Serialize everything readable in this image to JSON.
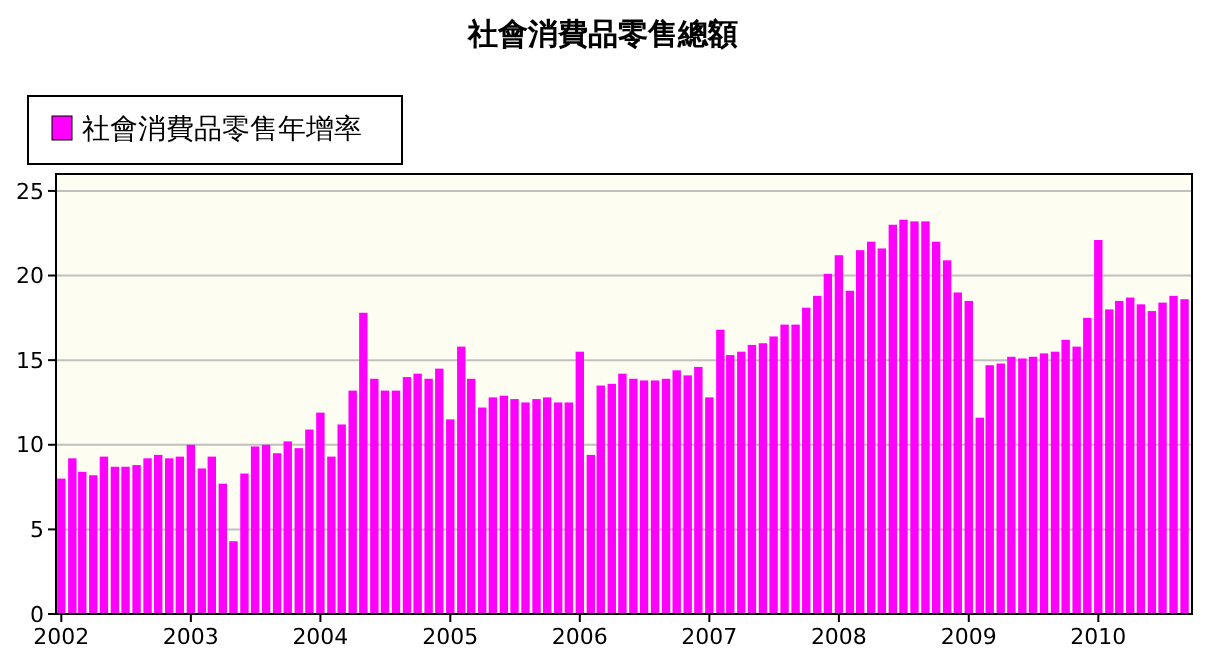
{
  "chart_data": {
    "type": "bar",
    "title": "社會消費品零售總額",
    "x": [
      "2002-01",
      "2002-02",
      "2002-03",
      "2002-04",
      "2002-05",
      "2002-06",
      "2002-07",
      "2002-08",
      "2002-09",
      "2002-10",
      "2002-11",
      "2002-12",
      "2003-01",
      "2003-02",
      "2003-03",
      "2003-04",
      "2003-05",
      "2003-06",
      "2003-07",
      "2003-08",
      "2003-09",
      "2003-10",
      "2003-11",
      "2003-12",
      "2004-01",
      "2004-02",
      "2004-03",
      "2004-04",
      "2004-05",
      "2004-06",
      "2004-07",
      "2004-08",
      "2004-09",
      "2004-10",
      "2004-11",
      "2004-12",
      "2005-01",
      "2005-02",
      "2005-03",
      "2005-04",
      "2005-05",
      "2005-06",
      "2005-07",
      "2005-08",
      "2005-09",
      "2005-10",
      "2005-11",
      "2005-12",
      "2006-01",
      "2006-02",
      "2006-03",
      "2006-04",
      "2006-05",
      "2006-06",
      "2006-07",
      "2006-08",
      "2006-09",
      "2006-10",
      "2006-11",
      "2006-12",
      "2007-01",
      "2007-02",
      "2007-03",
      "2007-04",
      "2007-05",
      "2007-06",
      "2007-07",
      "2007-08",
      "2007-09",
      "2007-10",
      "2007-11",
      "2007-12",
      "2008-01",
      "2008-02",
      "2008-03",
      "2008-04",
      "2008-05",
      "2008-06",
      "2008-07",
      "2008-08",
      "2008-09",
      "2008-10",
      "2008-11",
      "2008-12",
      "2009-01",
      "2009-02",
      "2009-03",
      "2009-04",
      "2009-05",
      "2009-06",
      "2009-07",
      "2009-08",
      "2009-09",
      "2009-10",
      "2009-11",
      "2009-12",
      "2010-01",
      "2010-02",
      "2010-03",
      "2010-04",
      "2010-05",
      "2010-06",
      "2010-07",
      "2010-08",
      "2010-09"
    ],
    "series": [
      {
        "name": "社會消費品零售年增率",
        "color": "#ff00ff",
        "values": [
          8.0,
          9.2,
          8.4,
          8.2,
          9.3,
          8.7,
          8.7,
          8.8,
          9.2,
          9.4,
          9.2,
          9.3,
          10.0,
          8.6,
          9.3,
          7.7,
          4.3,
          8.3,
          9.9,
          10.0,
          9.5,
          10.2,
          9.8,
          10.9,
          11.9,
          9.3,
          11.2,
          13.2,
          17.8,
          13.9,
          13.2,
          13.2,
          14.0,
          14.2,
          13.9,
          14.5,
          11.5,
          15.8,
          13.9,
          12.2,
          12.8,
          12.9,
          12.7,
          12.5,
          12.7,
          12.8,
          12.5,
          12.5,
          15.5,
          9.4,
          13.5,
          13.6,
          14.2,
          13.9,
          13.8,
          13.8,
          13.9,
          14.4,
          14.1,
          14.6,
          12.8,
          16.8,
          15.3,
          15.5,
          15.9,
          16.0,
          16.4,
          17.1,
          17.1,
          18.1,
          18.8,
          20.1,
          21.2,
          19.1,
          21.5,
          22.0,
          21.6,
          23.0,
          23.3,
          23.2,
          23.2,
          22.0,
          20.9,
          19.0,
          18.5,
          11.6,
          14.7,
          14.8,
          15.2,
          15.1,
          15.2,
          15.4,
          15.5,
          16.2,
          15.8,
          17.5,
          22.1,
          18.0,
          18.5,
          18.7,
          18.3,
          17.9,
          18.4,
          18.8,
          18.6
        ]
      }
    ],
    "xlim": [
      "2001-12-17",
      "2010-09-22"
    ],
    "xticks": [
      "2002",
      "2003",
      "2004",
      "2005",
      "2006",
      "2007",
      "2008",
      "2009",
      "2010"
    ],
    "ylim": [
      0,
      26
    ],
    "yticks": [
      0,
      5,
      10,
      15,
      20,
      25
    ],
    "grid": "y",
    "legend": "top left"
  }
}
